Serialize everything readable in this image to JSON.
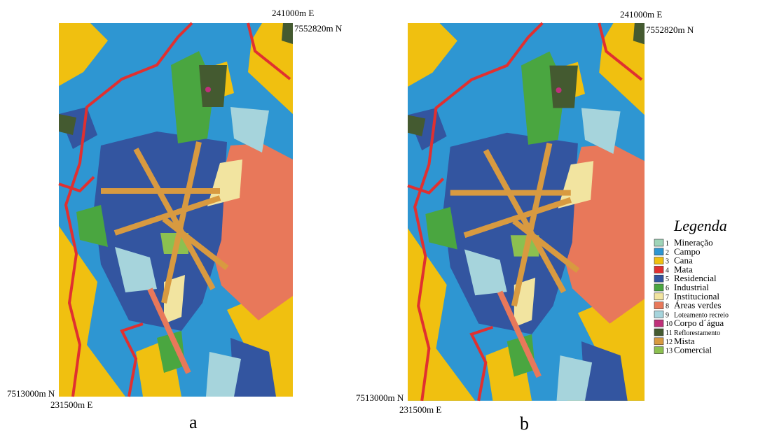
{
  "panels": [
    {
      "label": "a",
      "top_right_e": "241000m E",
      "top_right_n": "7552820m N",
      "bottom_left_n": "7513000m N",
      "bottom_left_e": "231500m E"
    },
    {
      "label": "b",
      "top_right_e": "241000m E",
      "top_right_n": "7552820m N",
      "bottom_left_n": "7513000m N",
      "bottom_left_e": "231500m E"
    }
  ],
  "legend": {
    "title": "Legenda",
    "items": [
      {
        "number": 1,
        "name": "Mineração",
        "color": "#9fd4b8"
      },
      {
        "number": 2,
        "name": "Campo",
        "color": "#2e96d2"
      },
      {
        "number": 3,
        "name": "Cana",
        "color": "#f0c010"
      },
      {
        "number": 4,
        "name": "Mata",
        "color": "#e03030"
      },
      {
        "number": 5,
        "name": "Residencial",
        "color": "#3355a0"
      },
      {
        "number": 6,
        "name": "Industrial",
        "color": "#4aa640"
      },
      {
        "number": 7,
        "name": "Institucional",
        "color": "#f2e4a0"
      },
      {
        "number": 8,
        "name": "Áreas verdes",
        "color": "#e8785a"
      },
      {
        "number": 9,
        "name": "Loteamento recreio",
        "color": "#a6d4dc"
      },
      {
        "number": 10,
        "name": "Corpo d´água",
        "color": "#c0307a"
      },
      {
        "number": 11,
        "name": "Reflorestamento",
        "color": "#445a30"
      },
      {
        "number": 12,
        "name": "Mista",
        "color": "#d89a40"
      },
      {
        "number": 13,
        "name": "Comercial",
        "color": "#8cc050"
      }
    ]
  }
}
